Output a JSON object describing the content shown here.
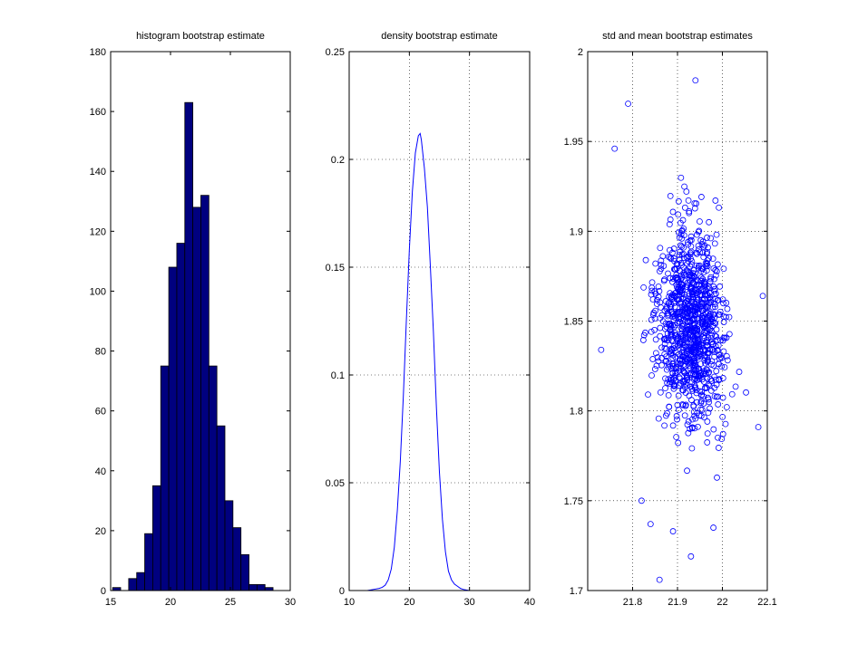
{
  "chart_data": [
    {
      "type": "bar",
      "title": "histogram bootstrap estimate",
      "xlabel": "",
      "ylabel": "",
      "xlim": [
        15,
        30
      ],
      "ylim": [
        0,
        180
      ],
      "xticks": [
        15,
        20,
        25,
        30
      ],
      "yticks": [
        0,
        20,
        40,
        60,
        80,
        100,
        120,
        140,
        160,
        180
      ],
      "grid": false,
      "bar_color": "#00007f",
      "bin_width": 0.67,
      "bin_centers": [
        15.5,
        16.17,
        16.84,
        17.51,
        18.18,
        18.85,
        19.52,
        20.19,
        20.86,
        21.53,
        22.2,
        22.87,
        23.54,
        24.21,
        24.88,
        25.55,
        26.22,
        26.89,
        27.56,
        28.23
      ],
      "values": [
        1,
        0,
        4,
        6,
        19,
        35,
        75,
        108,
        116,
        163,
        128,
        132,
        75,
        55,
        30,
        21,
        12,
        2,
        2,
        1
      ]
    },
    {
      "type": "line",
      "title": "density bootstrap estimate",
      "xlabel": "",
      "ylabel": "",
      "xlim": [
        10,
        40
      ],
      "ylim": [
        0,
        0.25
      ],
      "xticks": [
        10,
        20,
        30,
        40
      ],
      "yticks": [
        0,
        0.05,
        0.1,
        0.15,
        0.2,
        0.25
      ],
      "grid": true,
      "line_color": "#0000ff",
      "x": [
        13,
        14,
        15,
        15.5,
        16,
        16.5,
        17,
        17.5,
        18,
        18.5,
        19,
        19.5,
        20,
        20.5,
        21,
        21.5,
        21.8,
        22,
        22.5,
        23,
        23.5,
        24,
        24.5,
        25,
        25.5,
        26,
        26.5,
        27,
        27.5,
        28,
        28.5,
        29,
        30
      ],
      "y": [
        0,
        0.0005,
        0.001,
        0.0015,
        0.0025,
        0.005,
        0.01,
        0.02,
        0.037,
        0.06,
        0.09,
        0.125,
        0.158,
        0.185,
        0.203,
        0.211,
        0.212,
        0.209,
        0.196,
        0.178,
        0.15,
        0.12,
        0.085,
        0.055,
        0.033,
        0.018,
        0.009,
        0.005,
        0.003,
        0.002,
        0.001,
        0.0005,
        0
      ]
    },
    {
      "type": "scatter",
      "title": "std and mean bootstrap estimates",
      "xlabel": "",
      "ylabel": "",
      "xlim": [
        21.7,
        22.1
      ],
      "ylim": [
        1.7,
        2.0
      ],
      "xticks": [
        21.8,
        21.9,
        22,
        22.1
      ],
      "yticks": [
        1.7,
        1.75,
        1.8,
        1.85,
        1.9,
        1.95,
        2
      ],
      "grid": true,
      "marker": "circle",
      "marker_color": "#0000ff",
      "n_points": 1000,
      "x_mean": 21.93,
      "x_std": 0.055,
      "y_mean": 1.848,
      "y_std": 0.038,
      "points": [
        [
          21.73,
          1.834
        ],
        [
          21.79,
          1.971
        ],
        [
          21.94,
          1.984
        ],
        [
          21.76,
          1.946
        ],
        [
          21.86,
          1.706
        ],
        [
          21.93,
          1.719
        ],
        [
          21.89,
          1.733
        ],
        [
          21.84,
          1.737
        ],
        [
          21.98,
          1.735
        ],
        [
          22.09,
          1.864
        ],
        [
          22.08,
          1.791
        ],
        [
          21.82,
          1.75
        ]
      ]
    }
  ]
}
